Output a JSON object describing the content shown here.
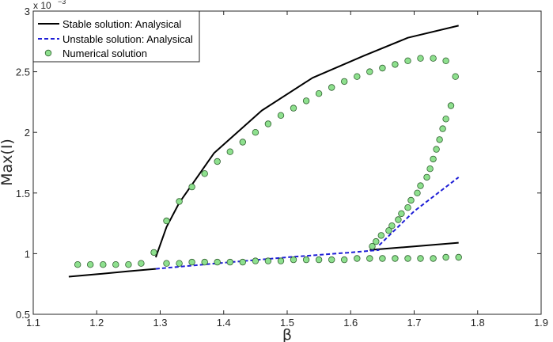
{
  "chart_data": {
    "type": "line",
    "xlabel": "β",
    "ylabel": "Max(I)",
    "xlim": [
      1.1,
      1.9
    ],
    "ylim": [
      0.5,
      3
    ],
    "x_ticks": [
      "1.1",
      "1.2",
      "1.3",
      "1.4",
      "1.5",
      "1.6",
      "1.7",
      "1.8",
      "1.9"
    ],
    "y_ticks": [
      "0.5",
      "1",
      "1.5",
      "2",
      "2.5",
      "3"
    ],
    "y_multiplier": {
      "base": "x 10",
      "exponent": "−3"
    },
    "grid": false,
    "legend_position": "top-left",
    "series": [
      {
        "name": "Stable solution: Analysical",
        "style": "solid",
        "color": "#000000",
        "segments": [
          [
            [
              1.156,
              0.81
            ],
            [
              1.2,
              0.83
            ],
            [
              1.25,
              0.855
            ],
            [
              1.293,
              0.875
            ]
          ],
          [
            [
              1.293,
              0.97
            ],
            [
              1.31,
              1.22
            ],
            [
              1.33,
              1.42
            ],
            [
              1.385,
              1.83
            ],
            [
              1.46,
              2.18
            ],
            [
              1.54,
              2.45
            ],
            [
              1.62,
              2.63
            ],
            [
              1.69,
              2.78
            ],
            [
              1.77,
              2.88
            ]
          ],
          [
            [
              1.63,
              1.03
            ],
            [
              1.7,
              1.06
            ],
            [
              1.77,
              1.09
            ]
          ]
        ]
      },
      {
        "name": "Unstable solution: Analysical",
        "style": "dashed",
        "color": "#1f1fd6",
        "segments": [
          [
            [
              1.293,
              0.875
            ],
            [
              1.4,
              0.925
            ],
            [
              1.5,
              0.97
            ],
            [
              1.6,
              1.01
            ],
            [
              1.645,
              1.03
            ]
          ],
          [
            [
              1.645,
              1.07
            ],
            [
              1.7,
              1.35
            ],
            [
              1.77,
              1.63
            ]
          ]
        ]
      },
      {
        "name": "Numerical solution",
        "style": "markers",
        "color": "#8ee08e",
        "points": [
          [
            1.17,
            0.91
          ],
          [
            1.19,
            0.91
          ],
          [
            1.21,
            0.91
          ],
          [
            1.23,
            0.91
          ],
          [
            1.25,
            0.91
          ],
          [
            1.27,
            0.92
          ],
          [
            1.29,
            1.01
          ],
          [
            1.31,
            0.92
          ],
          [
            1.33,
            0.92
          ],
          [
            1.35,
            0.93
          ],
          [
            1.37,
            0.93
          ],
          [
            1.39,
            0.93
          ],
          [
            1.41,
            0.93
          ],
          [
            1.43,
            0.93
          ],
          [
            1.45,
            0.94
          ],
          [
            1.47,
            0.94
          ],
          [
            1.49,
            0.94
          ],
          [
            1.51,
            0.95
          ],
          [
            1.53,
            0.95
          ],
          [
            1.55,
            0.95
          ],
          [
            1.57,
            0.95
          ],
          [
            1.59,
            0.95
          ],
          [
            1.61,
            0.96
          ],
          [
            1.63,
            0.96
          ],
          [
            1.65,
            0.96
          ],
          [
            1.67,
            0.96
          ],
          [
            1.69,
            0.96
          ],
          [
            1.71,
            0.96
          ],
          [
            1.73,
            0.96
          ],
          [
            1.75,
            0.97
          ],
          [
            1.77,
            0.97
          ],
          [
            1.31,
            1.27
          ],
          [
            1.33,
            1.43
          ],
          [
            1.35,
            1.55
          ],
          [
            1.37,
            1.66
          ],
          [
            1.39,
            1.76
          ],
          [
            1.41,
            1.84
          ],
          [
            1.43,
            1.92
          ],
          [
            1.45,
            2.0
          ],
          [
            1.47,
            2.07
          ],
          [
            1.49,
            2.14
          ],
          [
            1.51,
            2.2
          ],
          [
            1.53,
            2.26
          ],
          [
            1.55,
            2.32
          ],
          [
            1.57,
            2.37
          ],
          [
            1.59,
            2.42
          ],
          [
            1.61,
            2.46
          ],
          [
            1.63,
            2.5
          ],
          [
            1.65,
            2.53
          ],
          [
            1.67,
            2.56
          ],
          [
            1.69,
            2.59
          ],
          [
            1.71,
            2.61
          ],
          [
            1.73,
            2.61
          ],
          [
            1.75,
            2.59
          ],
          [
            1.765,
            2.46
          ],
          [
            1.758,
            2.22
          ],
          [
            1.75,
            2.11
          ],
          [
            1.745,
            2.03
          ],
          [
            1.74,
            1.94
          ],
          [
            1.735,
            1.86
          ],
          [
            1.73,
            1.78
          ],
          [
            1.725,
            1.7
          ],
          [
            1.72,
            1.63
          ],
          [
            1.71,
            1.56
          ],
          [
            1.705,
            1.5
          ],
          [
            1.695,
            1.44
          ],
          [
            1.69,
            1.38
          ],
          [
            1.68,
            1.33
          ],
          [
            1.675,
            1.28
          ],
          [
            1.665,
            1.23
          ],
          [
            1.66,
            1.19
          ],
          [
            1.648,
            1.15
          ],
          [
            1.64,
            1.1
          ],
          [
            1.634,
            1.06
          ]
        ]
      }
    ]
  }
}
